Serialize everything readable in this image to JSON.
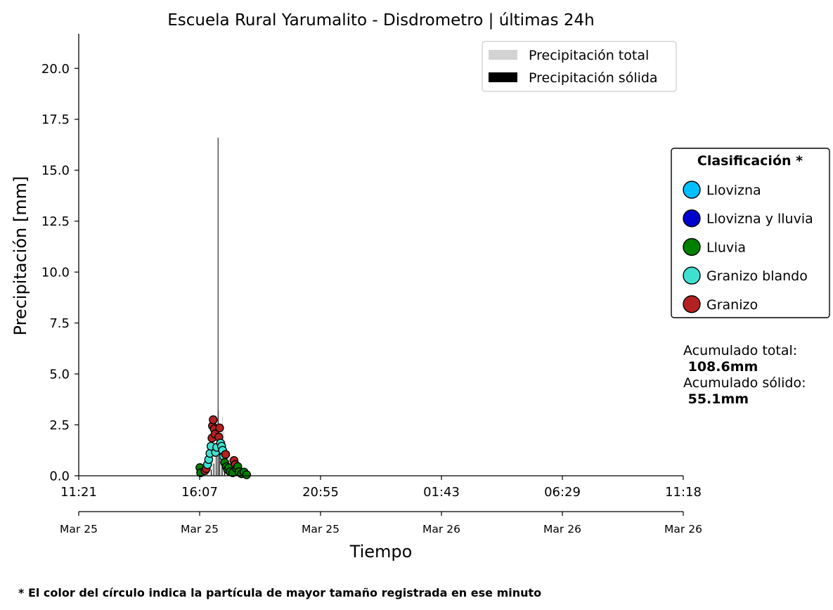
{
  "chart_data": {
    "type": "scatter",
    "title": "Escuela Rural Yarumalito - Disdrometro  |  últimas 24h",
    "xlabel": "Tiempo",
    "ylabel": "Precipitación [mm]",
    "x_ticks_time": [
      "11:21",
      "16:07",
      "20:55",
      "01:43",
      "06:29",
      "11:18"
    ],
    "x_ticks_date": [
      "Mar 25",
      "Mar 25",
      "Mar 25",
      "Mar 26",
      "Mar 26",
      "Mar 26"
    ],
    "x_unit": "hours after 11:21",
    "xlim": [
      0,
      23.95
    ],
    "ylim": [
      0,
      21.7
    ],
    "y_ticks": [
      "0.0",
      "2.5",
      "5.0",
      "7.5",
      "10.0",
      "12.5",
      "15.0",
      "17.5",
      "20.0"
    ],
    "grid": false,
    "legend_bars": {
      "placement": "top-right",
      "items": [
        {
          "label": "Precipitación total",
          "color": "#d3d3d3"
        },
        {
          "label": "Precipitación sólida",
          "color": "#000000"
        }
      ]
    },
    "legend_classes": {
      "title": "Clasificación *",
      "placement": "right",
      "items": [
        {
          "key": "llovizna",
          "label": "Llovizna",
          "color": "#00bfff"
        },
        {
          "key": "llovizna_lluvia",
          "label": "Llovizna y lluvia",
          "color": "#0000cd"
        },
        {
          "key": "lluvia",
          "label": "Lluvia",
          "color": "#008000"
        },
        {
          "key": "granizo_blando",
          "label": "Granizo blando",
          "color": "#40e0d0"
        },
        {
          "key": "granizo",
          "label": "Granizo",
          "color": "#b22222"
        }
      ]
    },
    "bars_total": [
      {
        "x": 5.1,
        "y": 0.3
      },
      {
        "x": 5.2,
        "y": 0.5
      },
      {
        "x": 5.3,
        "y": 0.9
      },
      {
        "x": 5.4,
        "y": 1.6
      },
      {
        "x": 5.5,
        "y": 2.6
      },
      {
        "x": 5.55,
        "y": 3.2
      },
      {
        "x": 5.6,
        "y": 1.9
      },
      {
        "x": 5.65,
        "y": 2.3
      },
      {
        "x": 5.7,
        "y": 2.9
      },
      {
        "x": 5.75,
        "y": 2.2
      },
      {
        "x": 5.8,
        "y": 1.7
      },
      {
        "x": 5.85,
        "y": 1.4
      },
      {
        "x": 5.95,
        "y": 1.1
      },
      {
        "x": 6.1,
        "y": 0.7
      },
      {
        "x": 6.3,
        "y": 0.5
      }
    ],
    "bars_solid": [
      {
        "x": 5.25,
        "y": 0.3
      },
      {
        "x": 5.35,
        "y": 0.6
      },
      {
        "x": 5.45,
        "y": 1.2
      },
      {
        "x": 5.52,
        "y": 16.6
      },
      {
        "x": 5.58,
        "y": 1.5
      },
      {
        "x": 5.68,
        "y": 1.8
      },
      {
        "x": 5.78,
        "y": 0.9
      },
      {
        "x": 5.9,
        "y": 0.6
      },
      {
        "x": 6.05,
        "y": 0.3
      }
    ],
    "points": [
      {
        "x": 4.8,
        "y": 0.4,
        "c": "lluvia"
      },
      {
        "x": 4.83,
        "y": 0.15,
        "c": "lluvia"
      },
      {
        "x": 5.0,
        "y": 0.25,
        "c": "granizo"
      },
      {
        "x": 5.05,
        "y": 0.35,
        "c": "granizo"
      },
      {
        "x": 5.1,
        "y": 0.55,
        "c": "granizo_blando"
      },
      {
        "x": 5.15,
        "y": 0.8,
        "c": "granizo_blando"
      },
      {
        "x": 5.2,
        "y": 1.1,
        "c": "granizo_blando"
      },
      {
        "x": 5.24,
        "y": 1.45,
        "c": "granizo_blando"
      },
      {
        "x": 5.28,
        "y": 1.85,
        "c": "granizo"
      },
      {
        "x": 5.3,
        "y": 2.45,
        "c": "granizo"
      },
      {
        "x": 5.33,
        "y": 2.75,
        "c": "granizo"
      },
      {
        "x": 5.37,
        "y": 2.3,
        "c": "granizo"
      },
      {
        "x": 5.4,
        "y": 2.05,
        "c": "granizo"
      },
      {
        "x": 5.42,
        "y": 1.15,
        "c": "granizo_blando"
      },
      {
        "x": 5.47,
        "y": 1.4,
        "c": "granizo_blando"
      },
      {
        "x": 5.55,
        "y": 1.9,
        "c": "granizo"
      },
      {
        "x": 5.58,
        "y": 2.35,
        "c": "granizo"
      },
      {
        "x": 5.62,
        "y": 1.6,
        "c": "granizo_blando"
      },
      {
        "x": 5.66,
        "y": 1.45,
        "c": "granizo_blando"
      },
      {
        "x": 5.7,
        "y": 1.25,
        "c": "granizo_blando"
      },
      {
        "x": 5.74,
        "y": 0.95,
        "c": "granizo_blando"
      },
      {
        "x": 5.78,
        "y": 0.65,
        "c": "lluvia"
      },
      {
        "x": 5.82,
        "y": 1.05,
        "c": "granizo"
      },
      {
        "x": 5.85,
        "y": 0.45,
        "c": "lluvia"
      },
      {
        "x": 5.9,
        "y": 0.3,
        "c": "lluvia"
      },
      {
        "x": 5.95,
        "y": 0.4,
        "c": "lluvia"
      },
      {
        "x": 6.0,
        "y": 0.2,
        "c": "lluvia"
      },
      {
        "x": 6.1,
        "y": 0.15,
        "c": "lluvia"
      },
      {
        "x": 6.15,
        "y": 0.75,
        "c": "granizo"
      },
      {
        "x": 6.2,
        "y": 0.55,
        "c": "granizo"
      },
      {
        "x": 6.25,
        "y": 0.35,
        "c": "lluvia"
      },
      {
        "x": 6.3,
        "y": 0.45,
        "c": "lluvia"
      },
      {
        "x": 6.35,
        "y": 0.2,
        "c": "lluvia"
      },
      {
        "x": 6.45,
        "y": 0.1,
        "c": "lluvia"
      },
      {
        "x": 6.55,
        "y": 0.18,
        "c": "lluvia"
      },
      {
        "x": 6.65,
        "y": 0.05,
        "c": "lluvia"
      }
    ],
    "summary": {
      "total_label": "Acumulado total:",
      "total_value": " 108.6mm",
      "solid_label": "Acumulado sólido:",
      "solid_value": " 55.1mm"
    },
    "footnote": "* El color del círculo indica la partícula de mayor tamaño registrada en ese minuto"
  }
}
